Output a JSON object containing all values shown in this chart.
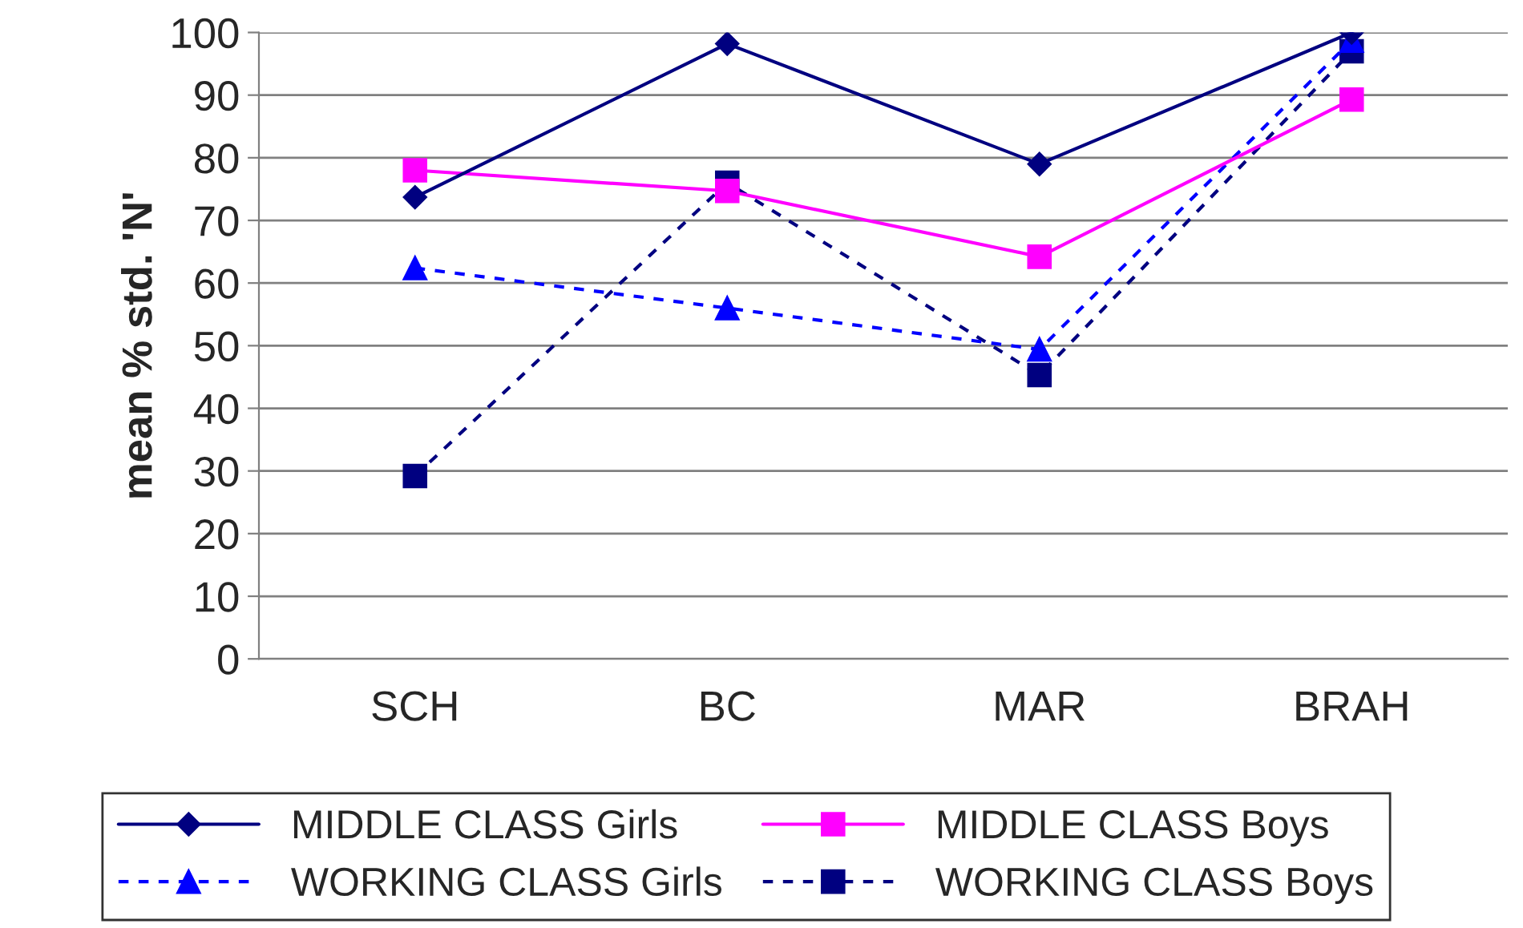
{
  "chart_data": {
    "type": "line",
    "ylabel": "mean % std. 'N'",
    "categories": [
      "SCH",
      "BC",
      "MAR",
      "BRAH"
    ],
    "series": [
      {
        "name": "MIDDLE CLASS Girls",
        "color": "#000080",
        "marker": "diamond",
        "line_style": "solid",
        "values": [
          73.7,
          98.2,
          79.0,
          100
        ]
      },
      {
        "name": "MIDDLE CLASS Boys",
        "color": "#ff00ff",
        "marker": "square",
        "line_style": "solid",
        "values": [
          78.0,
          74.7,
          64.2,
          89.3
        ]
      },
      {
        "name": "WORKING CLASS Girls",
        "color": "#0000ff",
        "marker": "triangle",
        "line_style": "dashed",
        "values": [
          62.4,
          56.0,
          49.4,
          98.7
        ]
      },
      {
        "name": "WORKING CLASS Boys",
        "color": "#000080",
        "marker": "square",
        "line_style": "dashed",
        "values": [
          29.2,
          76.0,
          45.3,
          97.0
        ]
      }
    ],
    "ylim": [
      0,
      100
    ],
    "yticks": [
      0,
      10,
      20,
      30,
      40,
      50,
      60,
      70,
      80,
      90,
      100
    ],
    "grid": "y",
    "legend": "bottom"
  }
}
